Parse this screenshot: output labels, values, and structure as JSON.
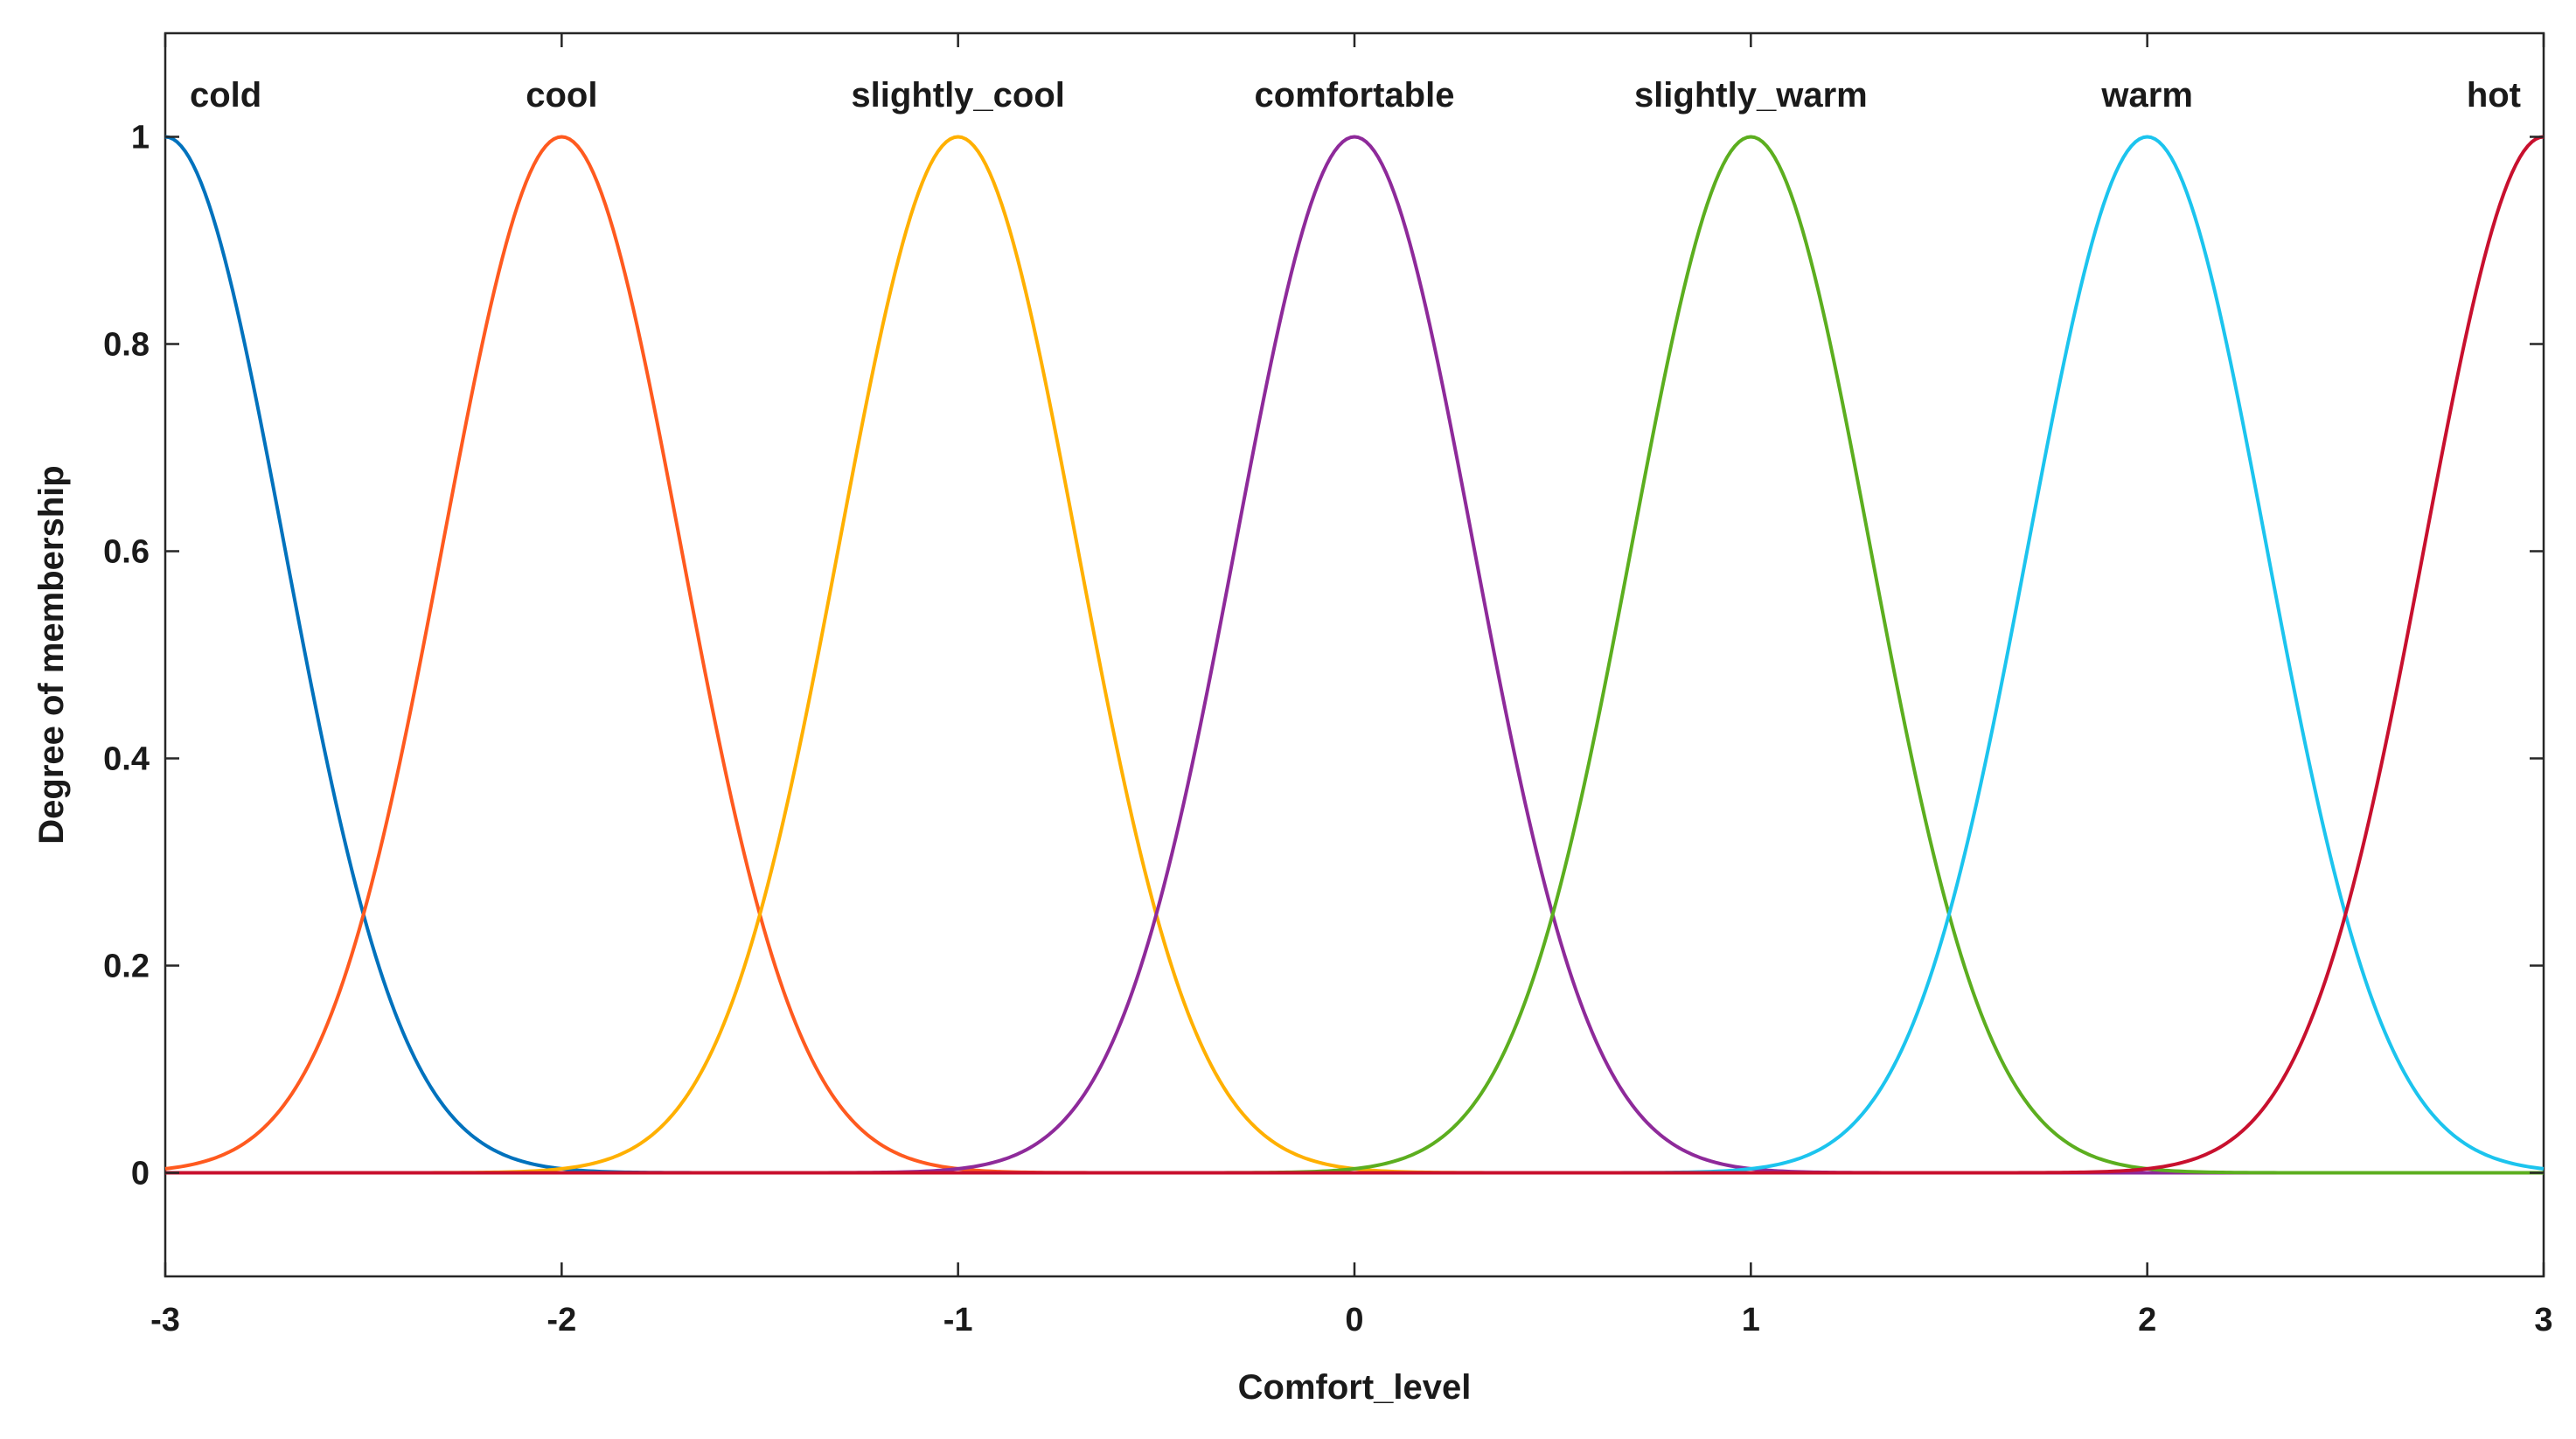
{
  "chart_data": {
    "type": "line",
    "xlabel": "Comfort_level",
    "ylabel": "Degree of membership",
    "xlim": [
      -3,
      3
    ],
    "ylim": [
      -0.1,
      1.1
    ],
    "x_ticks": [
      -3,
      -2,
      -1,
      0,
      1,
      2,
      3
    ],
    "x_tick_labels": [
      "-3",
      "-2",
      "-1",
      "0",
      "1",
      "2",
      "3"
    ],
    "y_ticks": [
      0,
      0.2,
      0.4,
      0.6,
      0.8,
      1
    ],
    "y_tick_labels": [
      "0",
      "0.2",
      "0.4",
      "0.6",
      "0.8",
      "1"
    ],
    "grid": false,
    "legend": "none",
    "curve_shape": "gaussian",
    "sigma": 0.3,
    "series": [
      {
        "name": "cold",
        "center": -3,
        "color": "#0072BD"
      },
      {
        "name": "cool",
        "center": -2,
        "color": "#FF5A1F"
      },
      {
        "name": "slightly_cool",
        "center": -1,
        "color": "#FFB000"
      },
      {
        "name": "comfortable",
        "center": 0,
        "color": "#8E2A9A"
      },
      {
        "name": "slightly_warm",
        "center": 1,
        "color": "#5CAE1F"
      },
      {
        "name": "warm",
        "center": 2,
        "color": "#1CC4EE"
      },
      {
        "name": "hot",
        "center": 3,
        "color": "#C8102E"
      }
    ]
  }
}
